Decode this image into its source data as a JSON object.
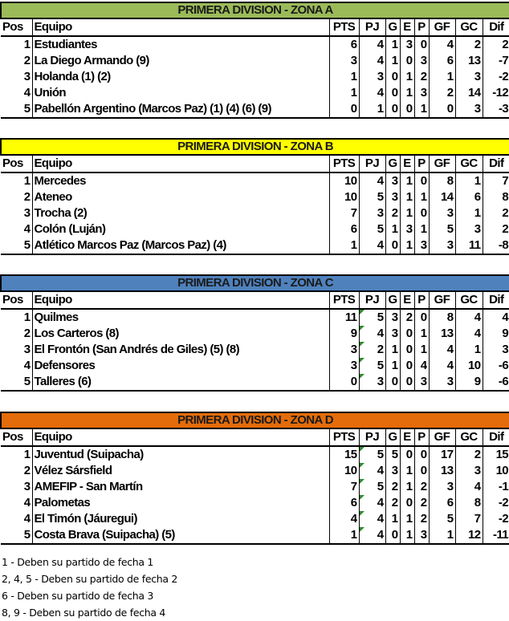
{
  "headers": [
    "Pos",
    "Equipo",
    "PTS",
    "PJ",
    "G",
    "E",
    "P",
    "GF",
    "GC",
    "Dif"
  ],
  "zones": [
    {
      "title": "PRIMERA DIVISION - ZONA A",
      "color": "#9bbb59",
      "markers": false,
      "rows": [
        [
          "1",
          "Estudiantes",
          "6",
          "4",
          "1",
          "3",
          "0",
          "4",
          "2",
          "2"
        ],
        [
          "2",
          "La Diego Armando (9)",
          "3",
          "4",
          "1",
          "0",
          "3",
          "6",
          "13",
          "-7"
        ],
        [
          "3",
          "Holanda (1) (2)",
          "1",
          "3",
          "0",
          "1",
          "2",
          "1",
          "3",
          "-2"
        ],
        [
          "4",
          "Unión",
          "1",
          "4",
          "0",
          "1",
          "3",
          "2",
          "14",
          "-12"
        ],
        [
          "5",
          "Pabellón Argentino (Marcos Paz) (1) (4) (6) (9)",
          "0",
          "1",
          "0",
          "0",
          "1",
          "0",
          "3",
          "-3"
        ]
      ]
    },
    {
      "title": "PRIMERA DIVISION - ZONA B",
      "color": "#ffff00",
      "markers": false,
      "rows": [
        [
          "1",
          "Mercedes",
          "10",
          "4",
          "3",
          "1",
          "0",
          "8",
          "1",
          "7"
        ],
        [
          "2",
          "Ateneo",
          "10",
          "5",
          "3",
          "1",
          "1",
          "14",
          "6",
          "8"
        ],
        [
          "3",
          "Trocha (2)",
          "7",
          "3",
          "2",
          "1",
          "0",
          "3",
          "1",
          "2"
        ],
        [
          "4",
          "Colón (Luján)",
          "6",
          "5",
          "1",
          "3",
          "1",
          "5",
          "3",
          "2"
        ],
        [
          "5",
          "Atlético Marcos Paz (Marcos Paz) (4)",
          "1",
          "4",
          "0",
          "1",
          "3",
          "3",
          "11",
          "-8"
        ]
      ]
    },
    {
      "title": "PRIMERA DIVISION - ZONA C",
      "color": "#4f81bd",
      "markers": true,
      "rows": [
        [
          "1",
          "Quilmes",
          "11",
          "5",
          "3",
          "2",
          "0",
          "8",
          "4",
          "4"
        ],
        [
          "2",
          "Los Carteros (8)",
          "9",
          "4",
          "3",
          "0",
          "1",
          "13",
          "4",
          "9"
        ],
        [
          "3",
          "El Frontón (San Andrés de Giles) (5) (8)",
          "3",
          "2",
          "1",
          "0",
          "1",
          "4",
          "1",
          "3"
        ],
        [
          "4",
          "Defensores",
          "3",
          "5",
          "1",
          "0",
          "4",
          "4",
          "10",
          "-6"
        ],
        [
          "5",
          "Talleres (6)",
          "0",
          "3",
          "0",
          "0",
          "3",
          "3",
          "9",
          "-6"
        ]
      ]
    },
    {
      "title": "PRIMERA DIVISION - ZONA D",
      "color": "#e46c0a",
      "markers": true,
      "rows": [
        [
          "1",
          "Juventud (Suipacha)",
          "15",
          "5",
          "5",
          "0",
          "0",
          "17",
          "2",
          "15"
        ],
        [
          "2",
          "Vélez Sársfield",
          "10",
          "4",
          "3",
          "1",
          "0",
          "13",
          "3",
          "10"
        ],
        [
          "3",
          "AMEFIP - San Martín",
          "7",
          "5",
          "2",
          "1",
          "2",
          "3",
          "4",
          "-1"
        ],
        [
          "4",
          "Palometas",
          "6",
          "4",
          "2",
          "0",
          "2",
          "6",
          "8",
          "-2"
        ],
        [
          "4",
          "El Timón (Jáuregui)",
          "4",
          "4",
          "1",
          "1",
          "2",
          "5",
          "7",
          "-2"
        ],
        [
          "5",
          "Costa Brava (Suipacha) (5)",
          "1",
          "4",
          "0",
          "1",
          "3",
          "1",
          "12",
          "-11"
        ]
      ]
    }
  ],
  "notes": [
    "1 - Deben su partido de fecha 1",
    "2, 4, 5 - Deben su partido de fecha 2",
    "6 - Deben su partido de fecha 3",
    "8, 9 - Deben su partido de fecha 4"
  ]
}
